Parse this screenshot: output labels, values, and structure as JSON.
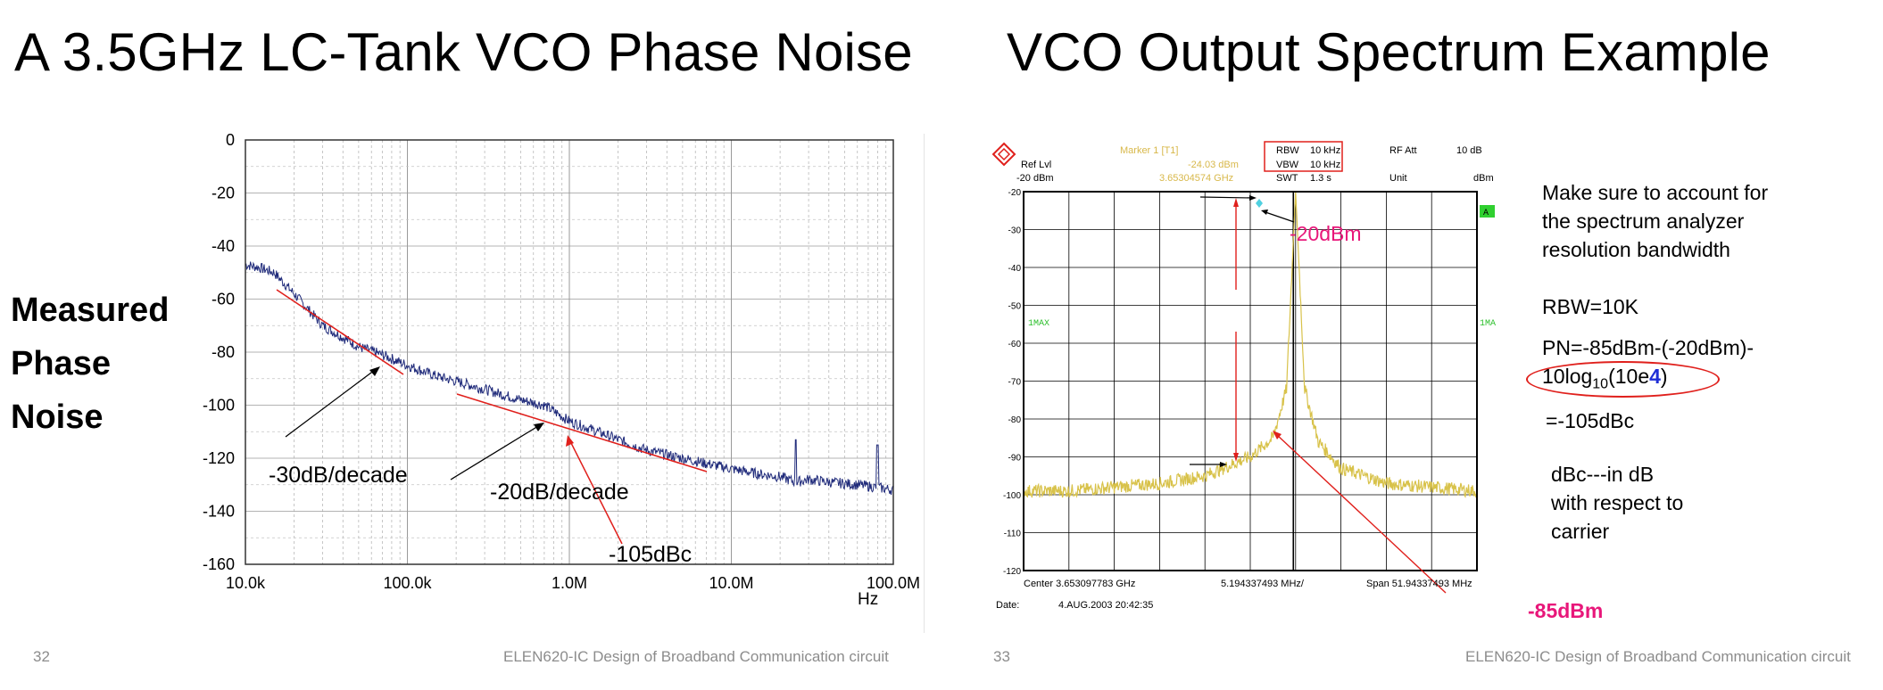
{
  "left_slide": {
    "title": "A 3.5GHz LC-Tank VCO Phase Noise",
    "side_label": [
      "Measured",
      "Phase",
      "Noise"
    ],
    "slide_number": "32",
    "footer": "ELEN620-IC Design of Broadband Communication circuit",
    "annotations": {
      "slope1": "-30dB/decade",
      "slope2": "-20dB/decade",
      "point": "-105dBc"
    }
  },
  "right_slide": {
    "title": "VCO Output Spectrum Example",
    "slide_number": "33",
    "footer": "ELEN620-IC Design of Broadband Communication circuit",
    "notes": {
      "line1": "Make sure to account for",
      "line2": "the spectrum analyzer",
      "line3": "resolution bandwidth",
      "rbw": "RBW=10K",
      "pn1": "PN=-85dBm-(-20dBm)-",
      "pn2_a": "10log",
      "pn2_sub": "10",
      "pn2_b": "(10e",
      "pn2_c": "4",
      "pn2_d": ")",
      "result": "=-105dBc",
      "dbc1": "dBc---in dB",
      "dbc2": "with respect to",
      "dbc3": "carrier"
    },
    "annotations": {
      "peak": "-20dBm",
      "sideband": "-85dBm"
    }
  },
  "colors": {
    "trace_left": "#1f2a7a",
    "trace_right": "#d8c24a",
    "red": "#e0201c",
    "magenta": "#e8177a",
    "blue": "#1f2fd6"
  },
  "chart_data": [
    {
      "type": "line",
      "title": "",
      "xlabel": "Hz",
      "ylabel": "",
      "x_scale": "log",
      "xlim": [
        10000,
        100000000
      ],
      "ylim": [
        -160,
        0
      ],
      "x_tick_labels": [
        "10.0k",
        "100.0k",
        "1.0M",
        "10.0M",
        "100.0M"
      ],
      "y_tick_labels": [
        "0",
        "-20",
        "-40",
        "-60",
        "-80",
        "-100",
        "-120",
        "-140",
        "-160"
      ],
      "grid": true,
      "series": [
        {
          "x": [
            10000,
            12000,
            15000,
            20000,
            30000,
            50000,
            70000,
            100000,
            150000,
            200000,
            300000,
            500000,
            700000,
            1000000,
            1500000,
            2000000,
            3000000,
            5000000,
            7000000,
            10000000,
            15000000,
            20000000,
            25000000,
            30000000,
            40000000,
            60000000,
            80000000,
            100000000
          ],
          "values": [
            -47,
            -48,
            -50,
            -58,
            -70,
            -78,
            -81,
            -85,
            -89,
            -91,
            -94,
            -98,
            -100,
            -106,
            -110,
            -113,
            -117,
            -120,
            -122,
            -124,
            -126,
            -127,
            -129,
            -128,
            -129,
            -130,
            -131,
            -132
          ]
        }
      ]
    },
    {
      "type": "line",
      "header": {
        "marker": "Marker 1 [T1]",
        "marker_level": "-24.03 dBm",
        "marker_freq": "3.65304574 GHz",
        "ref_lvl_label": "Ref Lvl",
        "ref_lvl": "-20 dBm",
        "rbw_label": "RBW",
        "rbw": "10 kHz",
        "vbw_label": "VBW",
        "vbw": "10 kHz",
        "swt_label": "SWT",
        "swt": "1.3 s",
        "rfatt_label": "RF Att",
        "rfatt": "10 dB",
        "unit_label": "Unit",
        "unit": "dBm",
        "trace_tag": "A",
        "mode_left": "1MAX",
        "mode_right": "1MA"
      },
      "footer": {
        "center": "Center 3.653097783 GHz",
        "div": "5.194337493 MHz/",
        "span": "Span 51.94337493 MHz",
        "date_label": "Date:",
        "date": "4.AUG.2003  20:42:35"
      },
      "ylim": [
        -120,
        -20
      ],
      "y_tick_labels": [
        "-20",
        "-30",
        "-40",
        "-50",
        "-60",
        "-70",
        "-80",
        "-90",
        "-100",
        "-110",
        "-120"
      ],
      "grid": true,
      "series": [
        {
          "x_div": [
            0,
            1,
            2,
            3,
            4,
            5,
            5.5,
            5.8,
            6.0,
            6.2,
            6.5,
            7,
            8,
            9,
            10
          ],
          "values": [
            -99,
            -99,
            -98,
            -97,
            -95,
            -90,
            -85,
            -72,
            -20,
            -72,
            -86,
            -93,
            -97,
            -98,
            -99
          ]
        }
      ]
    }
  ]
}
